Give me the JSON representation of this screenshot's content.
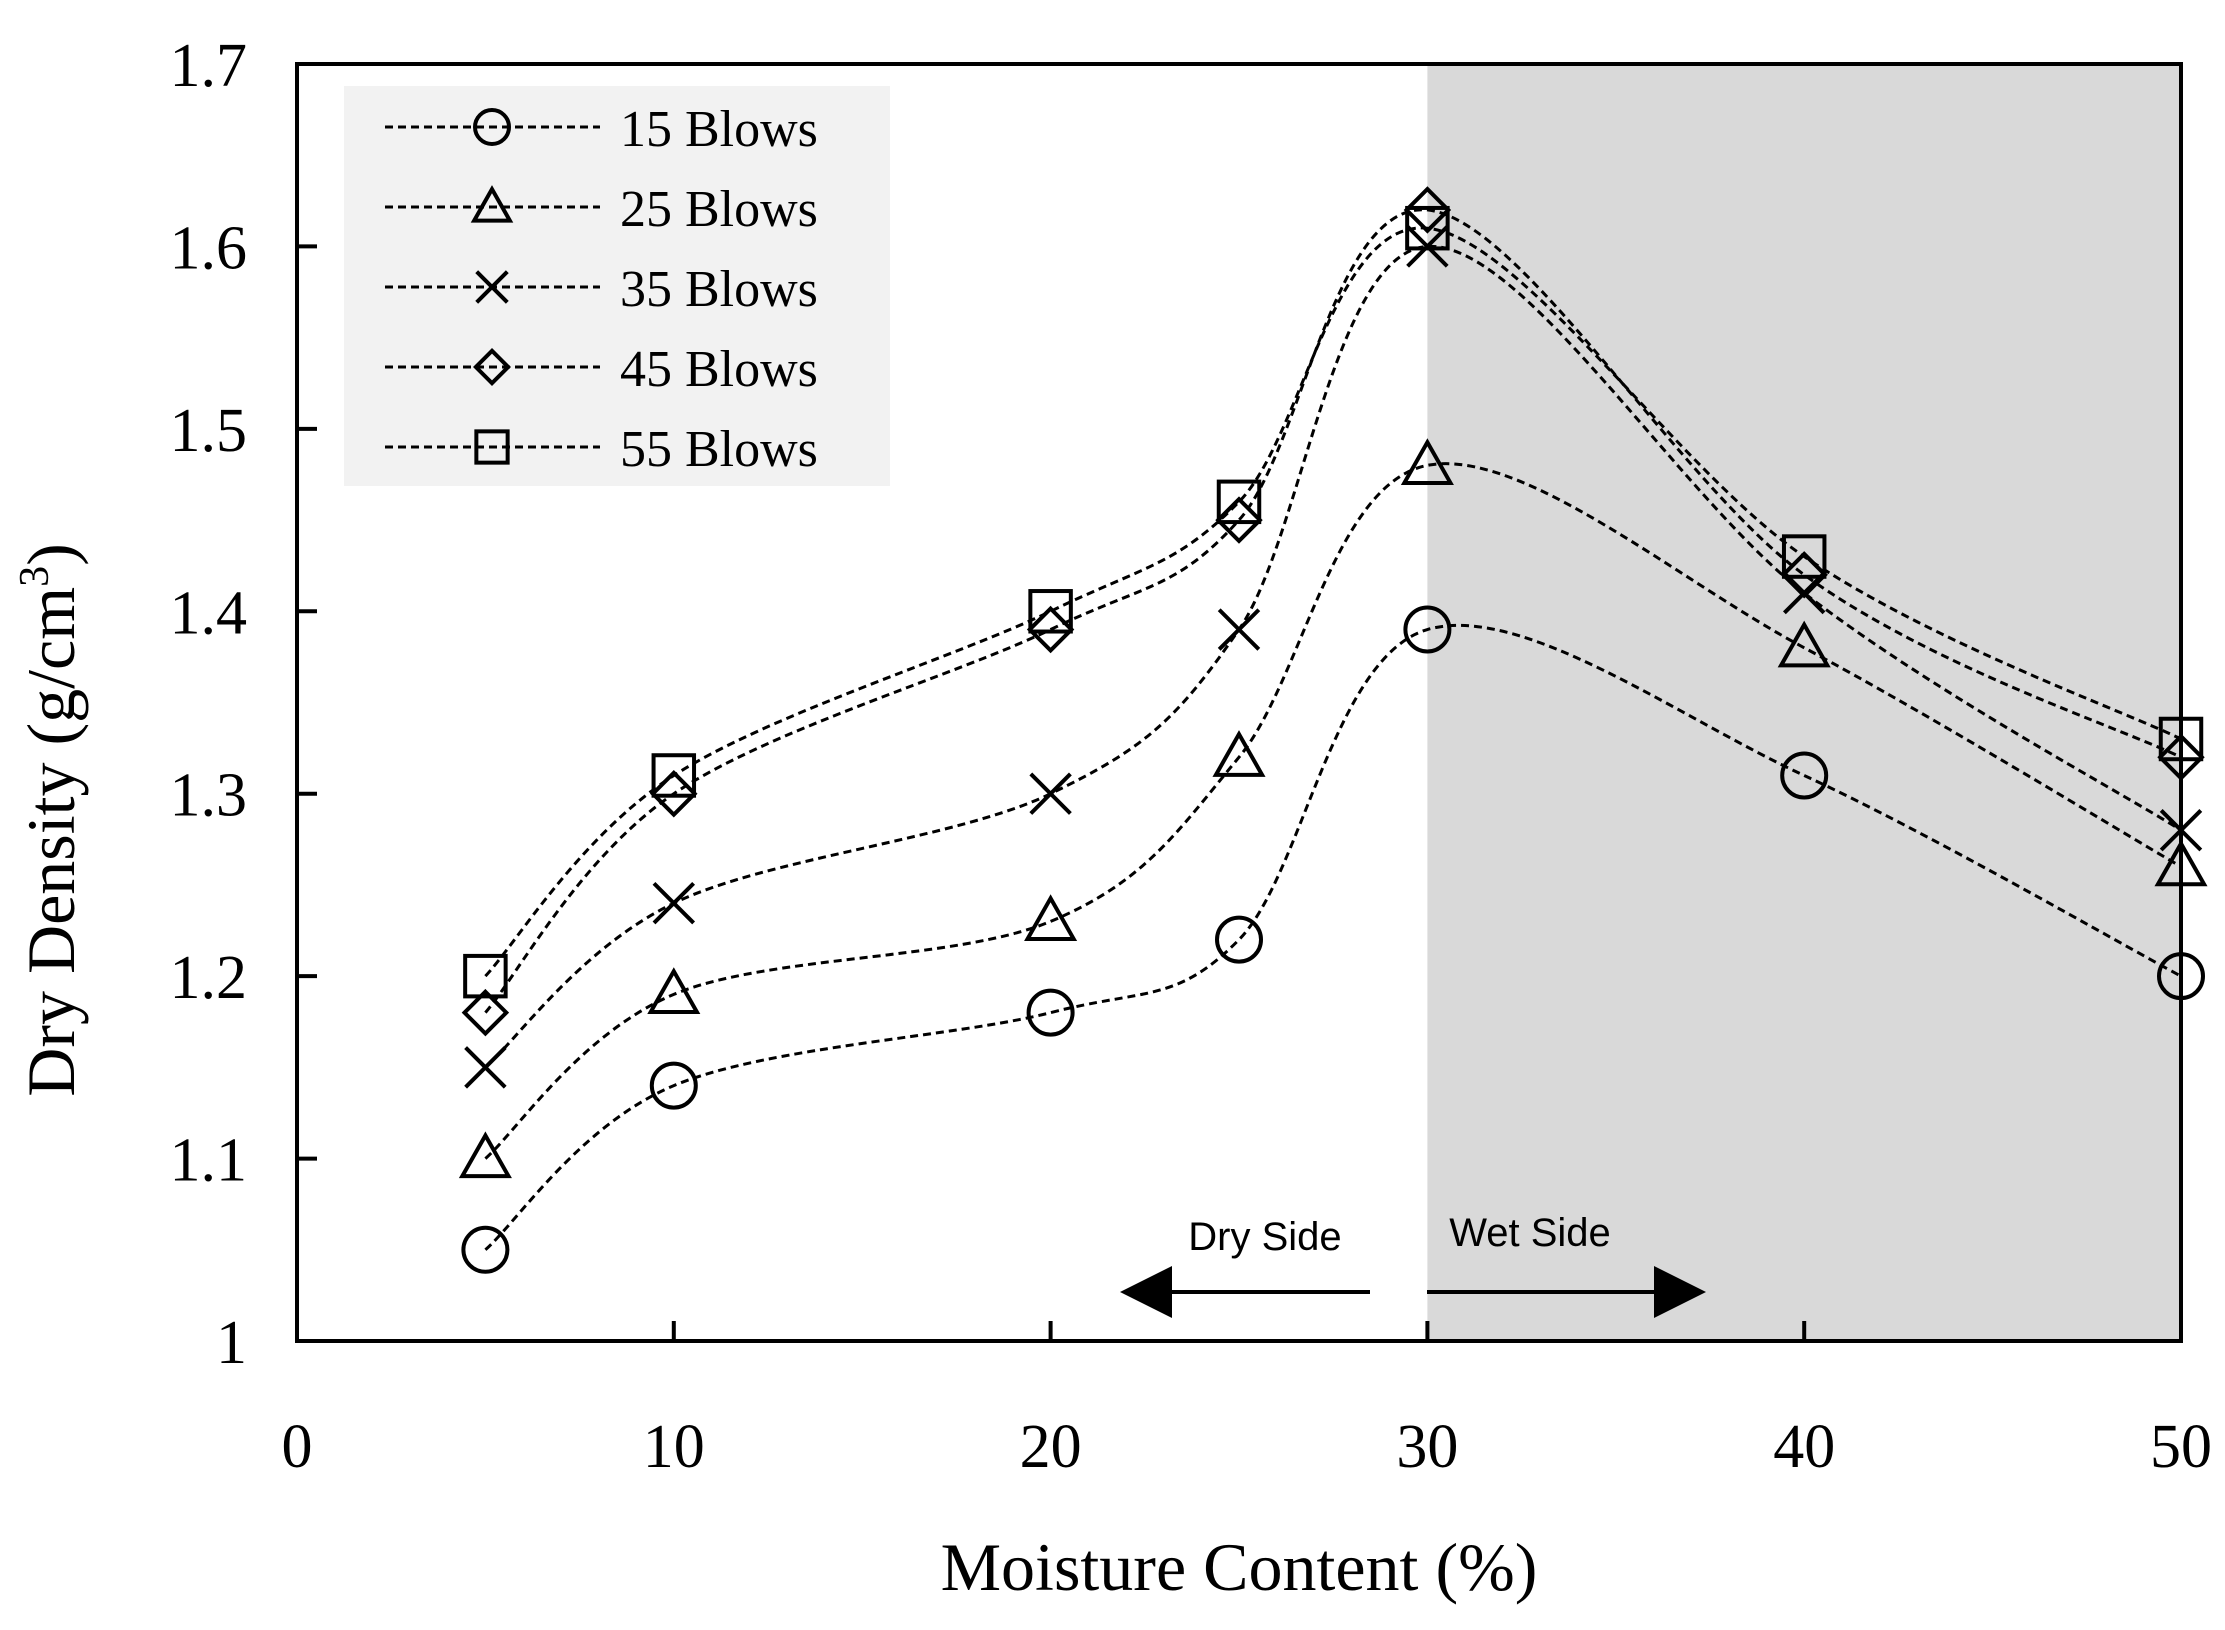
{
  "chart_data": {
    "type": "line",
    "title": "",
    "xlabel": "Moisture Content (%)",
    "ylabel": "Dry Density  (g/cm",
    "ylabel_sup": "3",
    "ylabel_close": ")",
    "xlim": [
      0,
      50
    ],
    "ylim": [
      1,
      1.7
    ],
    "xticks": [
      "0",
      "10",
      "20",
      "30",
      "40",
      "50"
    ],
    "yticks": [
      "1",
      "1.1",
      "1.2",
      "1.3",
      "1.4",
      "1.5",
      "1.6",
      "1.7"
    ],
    "grid": false,
    "legend_position": "top-left",
    "shaded_region": {
      "x_from": 30,
      "x_to": 50,
      "color": "#d9d9d9"
    },
    "annotations": {
      "dry_side": "Dry Side",
      "wet_side": "Wet Side"
    },
    "x": [
      5,
      10,
      20,
      25,
      30,
      40,
      50
    ],
    "series": [
      {
        "name": "15 Blows",
        "marker": "circle",
        "values": [
          1.05,
          1.14,
          1.18,
          1.22,
          1.39,
          1.31,
          1.2
        ]
      },
      {
        "name": "25 Blows",
        "marker": "triangle",
        "values": [
          1.1,
          1.19,
          1.23,
          1.32,
          1.48,
          1.38,
          1.26
        ]
      },
      {
        "name": "35 Blows",
        "marker": "cross",
        "values": [
          1.15,
          1.24,
          1.3,
          1.39,
          1.6,
          1.41,
          1.28
        ]
      },
      {
        "name": "45 Blows",
        "marker": "diamond",
        "values": [
          1.18,
          1.3,
          1.39,
          1.45,
          1.62,
          1.42,
          1.32
        ]
      },
      {
        "name": "55 Blows",
        "marker": "square",
        "values": [
          1.2,
          1.31,
          1.4,
          1.46,
          1.61,
          1.43,
          1.33
        ]
      }
    ],
    "colors": {
      "line": "#000000",
      "legend_bg": "#f2f2f2",
      "axis": "#000000"
    }
  }
}
